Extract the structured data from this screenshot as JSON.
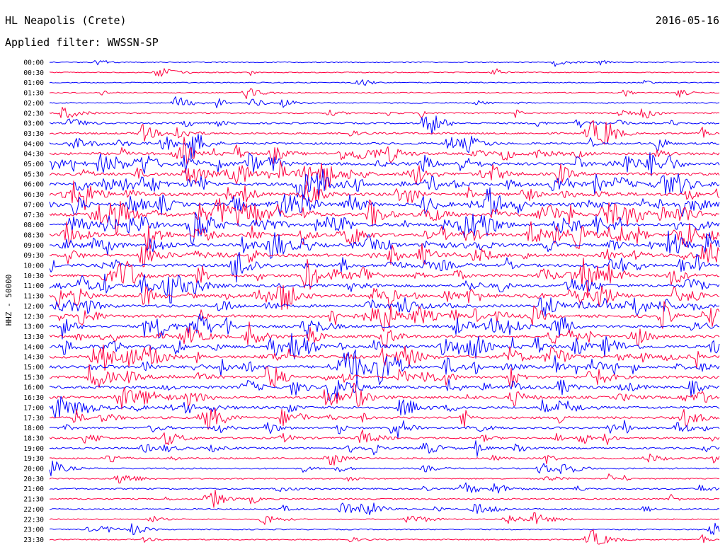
{
  "header": {
    "station": "HL Neapolis (Crete)",
    "date": "2016-05-16",
    "filter_line": "Applied filter: WWSSN-SP"
  },
  "chart_data": {
    "type": "helicorder",
    "title": "HL Neapolis (Crete)",
    "date": "2016-05-16",
    "filter": "WWSSN-SP",
    "channel_label": "HHZ - 50000",
    "colors": [
      "#0000ff",
      "#ff0040"
    ],
    "time_labels": [
      "00:00",
      "00:30",
      "01:00",
      "01:30",
      "02:00",
      "02:30",
      "03:00",
      "03:30",
      "04:00",
      "04:30",
      "05:00",
      "05:30",
      "06:00",
      "06:30",
      "07:00",
      "07:30",
      "08:00",
      "08:30",
      "09:00",
      "09:30",
      "10:00",
      "10:30",
      "11:00",
      "11:30",
      "12:00",
      "12:30",
      "13:00",
      "13:30",
      "14:00",
      "14:30",
      "15:00",
      "15:30",
      "16:00",
      "16:30",
      "17:00",
      "17:30",
      "18:00",
      "18:30",
      "19:00",
      "19:30",
      "20:00",
      "20:30",
      "21:00",
      "21:30",
      "22:00",
      "22:30",
      "23:00",
      "23:30"
    ],
    "activity_level": [
      0.05,
      0.06,
      0.06,
      0.1,
      0.15,
      0.2,
      0.3,
      0.4,
      0.55,
      0.7,
      0.8,
      0.85,
      0.9,
      0.9,
      0.95,
      1.0,
      0.95,
      0.85,
      0.85,
      0.8,
      0.85,
      0.85,
      0.8,
      0.8,
      0.8,
      0.8,
      0.8,
      0.8,
      0.85,
      0.8,
      0.8,
      0.75,
      0.8,
      0.75,
      0.75,
      0.6,
      0.5,
      0.4,
      0.4,
      0.3,
      0.25,
      0.2,
      0.25,
      0.2,
      0.2,
      0.15,
      0.15,
      0.12
    ]
  }
}
